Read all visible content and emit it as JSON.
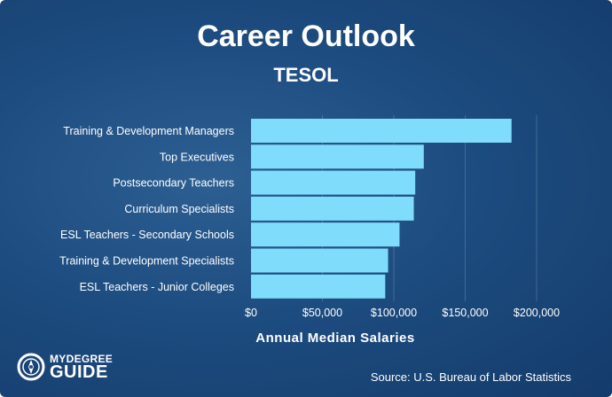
{
  "header": {
    "title": "Career Outlook",
    "subtitle": "TESOL"
  },
  "chart_data": {
    "type": "bar",
    "orientation": "horizontal",
    "categories": [
      "Training & Development Managers",
      "Top Executives",
      "Postsecondary Teachers",
      "Curriculum Specialists",
      "ESL Teachers - Secondary Schools",
      "Training & Development Specialists",
      "ESL Teachers - Junior Colleges"
    ],
    "values": [
      182440,
      121000,
      115000,
      114000,
      104000,
      96000,
      94000
    ],
    "xlabel": "Annual Median Salaries",
    "ylabel": "",
    "xlim": [
      0,
      200000
    ],
    "xticks": [
      0,
      50000,
      100000,
      150000,
      200000
    ],
    "xtick_labels": [
      "$0",
      "$50,000",
      "$100,000",
      "$150,000",
      "$200,000"
    ],
    "grid": "vertical",
    "colors": {
      "bar": "#7fdcfb",
      "background": "#1d4c80"
    }
  },
  "footer": {
    "logo_top": "MYDEGREE",
    "logo_bottom": "GUIDE",
    "logo_icon": "compass-icon",
    "source": "Source: U.S. Bureau of Labor Statistics"
  }
}
